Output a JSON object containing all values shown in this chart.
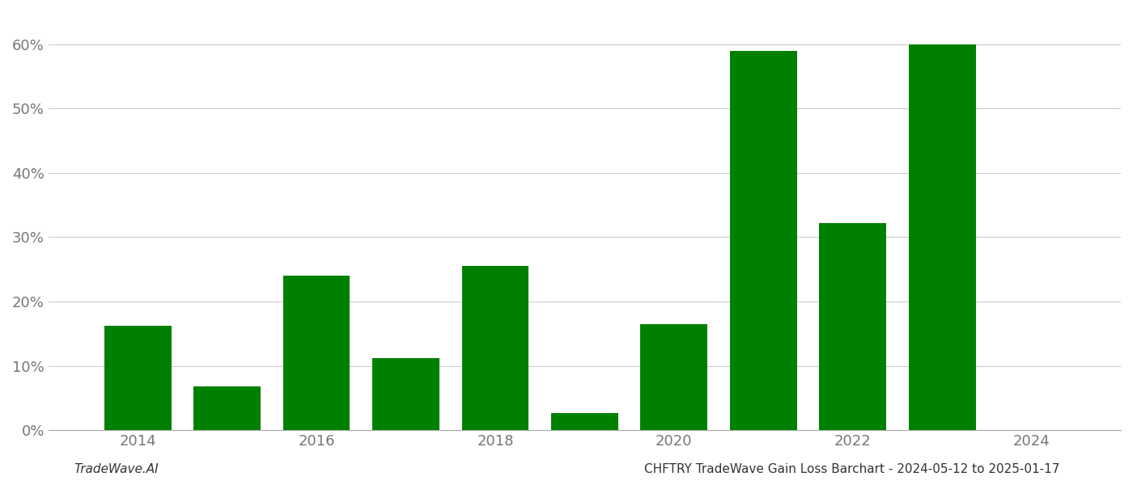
{
  "bar_years": [
    2014,
    2015,
    2016,
    2017,
    2018,
    2019,
    2020,
    2021,
    2022,
    2023
  ],
  "values": [
    0.162,
    0.068,
    0.24,
    0.112,
    0.255,
    0.026,
    0.165,
    0.59,
    0.322,
    0.6
  ],
  "bar_color": "#008000",
  "background_color": "#ffffff",
  "grid_color": "#cccccc",
  "axis_label_color": "#777777",
  "ylabel_ticks": [
    0.0,
    0.1,
    0.2,
    0.3,
    0.4,
    0.5,
    0.6
  ],
  "ylabel_labels": [
    "0%",
    "10%",
    "20%",
    "30%",
    "40%",
    "50%",
    "60%"
  ],
  "ylim": [
    0,
    0.65
  ],
  "xlim": [
    2013.0,
    2025.0
  ],
  "xtick_positions": [
    2014,
    2016,
    2018,
    2020,
    2022,
    2024
  ],
  "xtick_labels": [
    "2014",
    "2016",
    "2018",
    "2020",
    "2022",
    "2024"
  ],
  "bar_width": 0.75,
  "tick_fontsize": 13,
  "footer_fontsize": 11,
  "footer_left": "TradeWave.AI",
  "footer_right": "CHFTRY TradeWave Gain Loss Barchart - 2024-05-12 to 2025-01-17"
}
